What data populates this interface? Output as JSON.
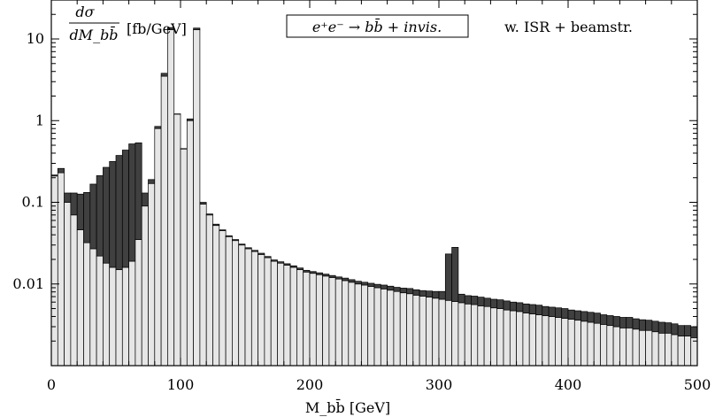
{
  "chart_data": {
    "type": "bar",
    "stacked_histogram": true,
    "ylabel_numerator": "dσ",
    "ylabel_denominator": "dM_bb̄",
    "ylabel_unit": "[fb/GeV]",
    "xlabel": "M_bb̄ [GeV]",
    "annotation_process": "e⁺e⁻ → bb̄ + invis.",
    "annotation_note": "w. ISR + beamstr.",
    "x_ticks": [
      "0",
      "100",
      "200",
      "300",
      "400",
      "500"
    ],
    "y_ticks": [
      "10",
      "1",
      "0.1",
      "0.01"
    ],
    "xlim": [
      0,
      500
    ],
    "ylim": [
      0.001,
      30
    ],
    "y_scale": "log",
    "bin_width": 5,
    "colors": {
      "bottom": "#e6e6e6",
      "top": "#404040",
      "edge": "#000000"
    },
    "series": [
      {
        "label_note": "light grey portion",
        "values": [
          0.21,
          0.23,
          0.1,
          0.07,
          0.046,
          0.032,
          0.027,
          0.022,
          0.018,
          0.016,
          0.015,
          0.016,
          0.019,
          0.035,
          0.09,
          0.17,
          0.8,
          3.5,
          13.0,
          1.2,
          0.45,
          1.0,
          13.0,
          0.095,
          0.07,
          0.052,
          0.045,
          0.038,
          0.034,
          0.03,
          0.027,
          0.025,
          0.023,
          0.021,
          0.019,
          0.018,
          0.017,
          0.016,
          0.015,
          0.014,
          0.0135,
          0.013,
          0.0125,
          0.012,
          0.0115,
          0.011,
          0.0105,
          0.01,
          0.0097,
          0.0093,
          0.009,
          0.0087,
          0.0084,
          0.0081,
          0.0078,
          0.0076,
          0.0073,
          0.0071,
          0.0069,
          0.0067,
          0.0065,
          0.0063,
          0.0061,
          0.0059,
          0.0057,
          0.0056,
          0.0054,
          0.0053,
          0.0051,
          0.005,
          0.0048,
          0.0047,
          0.0046,
          0.0044,
          0.0043,
          0.0042,
          0.0041,
          0.004,
          0.0039,
          0.0038,
          0.0037,
          0.0036,
          0.0035,
          0.0034,
          0.0033,
          0.0032,
          0.0031,
          0.003,
          0.0029,
          0.0029,
          0.0028,
          0.0027,
          0.0027,
          0.0026,
          0.0025,
          0.0025,
          0.0024,
          0.0023,
          0.0023,
          0.0022
        ]
      },
      {
        "label_note": "dark grey portion (stacked on top)",
        "values": [
          0.006,
          0.03,
          0.03,
          0.06,
          0.08,
          0.1,
          0.14,
          0.19,
          0.25,
          0.3,
          0.36,
          0.42,
          0.5,
          0.5,
          0.04,
          0.02,
          0.05,
          0.3,
          0.8,
          0.01,
          0.005,
          0.05,
          0.6,
          0.005,
          0.002,
          0.002,
          0.001,
          0.001,
          0.001,
          0.0008,
          0.0008,
          0.0008,
          0.0008,
          0.0007,
          0.0007,
          0.0007,
          0.0007,
          0.0007,
          0.0007,
          0.0007,
          0.0007,
          0.0007,
          0.0007,
          0.0007,
          0.0007,
          0.0008,
          0.0008,
          0.0008,
          0.0008,
          0.0009,
          0.0009,
          0.001,
          0.001,
          0.001,
          0.0011,
          0.0012,
          0.0012,
          0.0012,
          0.0013,
          0.0014,
          0.0016,
          0.017,
          0.022,
          0.0016,
          0.0015,
          0.0015,
          0.0015,
          0.0014,
          0.0014,
          0.0014,
          0.0014,
          0.0013,
          0.0013,
          0.0013,
          0.0013,
          0.0013,
          0.0012,
          0.0012,
          0.0012,
          0.0012,
          0.0011,
          0.0011,
          0.0011,
          0.0011,
          0.0011,
          0.001,
          0.001,
          0.001,
          0.001,
          0.001,
          0.00095,
          0.00095,
          0.0009,
          0.0009,
          0.0009,
          0.00085,
          0.00085,
          0.0008,
          0.0008,
          0.0008
        ]
      }
    ]
  }
}
